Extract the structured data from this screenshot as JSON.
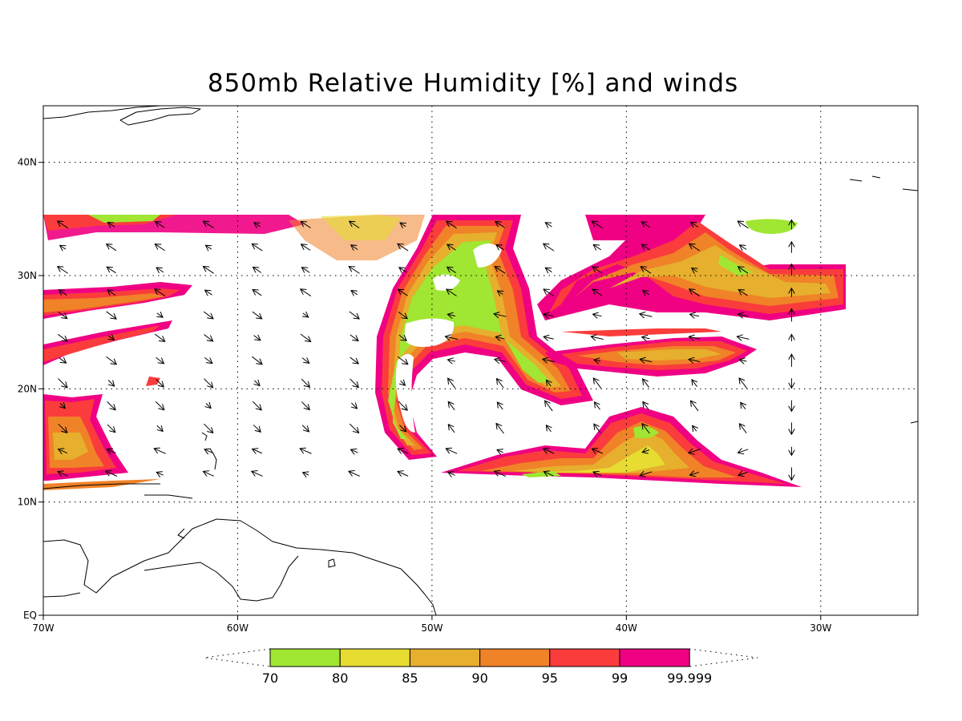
{
  "title": "850mb Relative Humidity [%] and winds",
  "chart_data": {
    "type": "heatmap",
    "title": "850mb Relative Humidity [%] and winds",
    "xlim": [
      -70,
      -25
    ],
    "ylim": [
      0,
      45
    ],
    "x_ticks": [
      {
        "value": -70,
        "label": "70W"
      },
      {
        "value": -60,
        "label": "60W"
      },
      {
        "value": -50,
        "label": "50W"
      },
      {
        "value": -40,
        "label": "40W"
      },
      {
        "value": -30,
        "label": "30W"
      }
    ],
    "y_ticks": [
      {
        "value": 0,
        "label": "EQ"
      },
      {
        "value": 10,
        "label": "10N"
      },
      {
        "value": 20,
        "label": "20N"
      },
      {
        "value": 30,
        "label": "30N"
      },
      {
        "value": 40,
        "label": "40N"
      }
    ],
    "grid": true,
    "colorbar": {
      "levels": [
        "70",
        "80",
        "85",
        "90",
        "95",
        "99",
        "99.999"
      ],
      "colors": [
        "#a0e632",
        "#e6dc32",
        "#e6af2d",
        "#f08228",
        "#fa3c3c",
        "#f00082"
      ]
    }
  }
}
